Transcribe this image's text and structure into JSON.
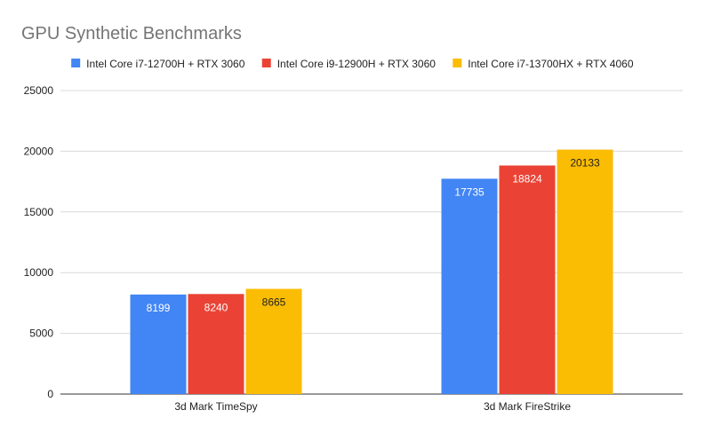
{
  "chart_data": {
    "type": "bar",
    "title": "GPU Synthetic Benchmarks",
    "xlabel": "",
    "ylabel": "",
    "categories": [
      "3d Mark TimeSpy",
      "3d Mark FireStrike"
    ],
    "series": [
      {
        "name": "Intel Core i7-12700H + RTX 3060",
        "color": "#4285f4",
        "label_color": "#ffffff",
        "values": [
          8199,
          17735
        ]
      },
      {
        "name": "Intel Core i9-12900H + RTX 3060",
        "color": "#ea4335",
        "label_color": "#ffffff",
        "values": [
          8240,
          18824
        ]
      },
      {
        "name": "Intel Core i7-13700HX + RTX 4060",
        "color": "#fbbc04",
        "label_color": "#222222",
        "values": [
          8665,
          20133
        ]
      }
    ],
    "ylim": [
      0,
      25000
    ],
    "yticks": [
      0,
      5000,
      10000,
      15000,
      20000,
      25000
    ],
    "grid": true,
    "legend_position": "top"
  }
}
